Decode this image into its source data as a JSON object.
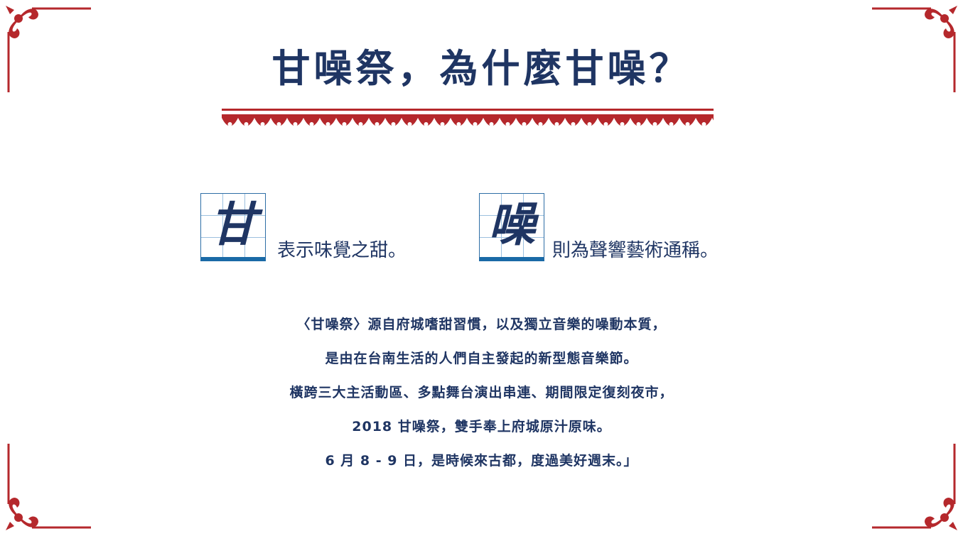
{
  "title": "甘噪祭，為什麼甘噪？",
  "glyphs": [
    {
      "char": "甘",
      "definition": "表示味覺之甜。"
    },
    {
      "char": "噪",
      "definition": "則為聲響藝術通稱。"
    }
  ],
  "paragraph": [
    "〈甘噪祭〉源自府城嗜甜習慣，以及獨立音樂的噪動本質，",
    "是由在台南生活的人們自主發起的新型態音樂節。",
    "橫跨三大主活動區、多點舞台演出串連、期間限定復刻夜市，",
    "2018 甘噪祭，雙手奉上府城原汁原味。",
    "6 月 8 - 9 日，是時候來古都，度過美好週末。」"
  ],
  "colors": {
    "navy": "#1f3563",
    "red": "#b5282c",
    "blue": "#1a6aa7"
  },
  "icons": [
    "corner-ornament-icon",
    "scallop-border-icon"
  ]
}
